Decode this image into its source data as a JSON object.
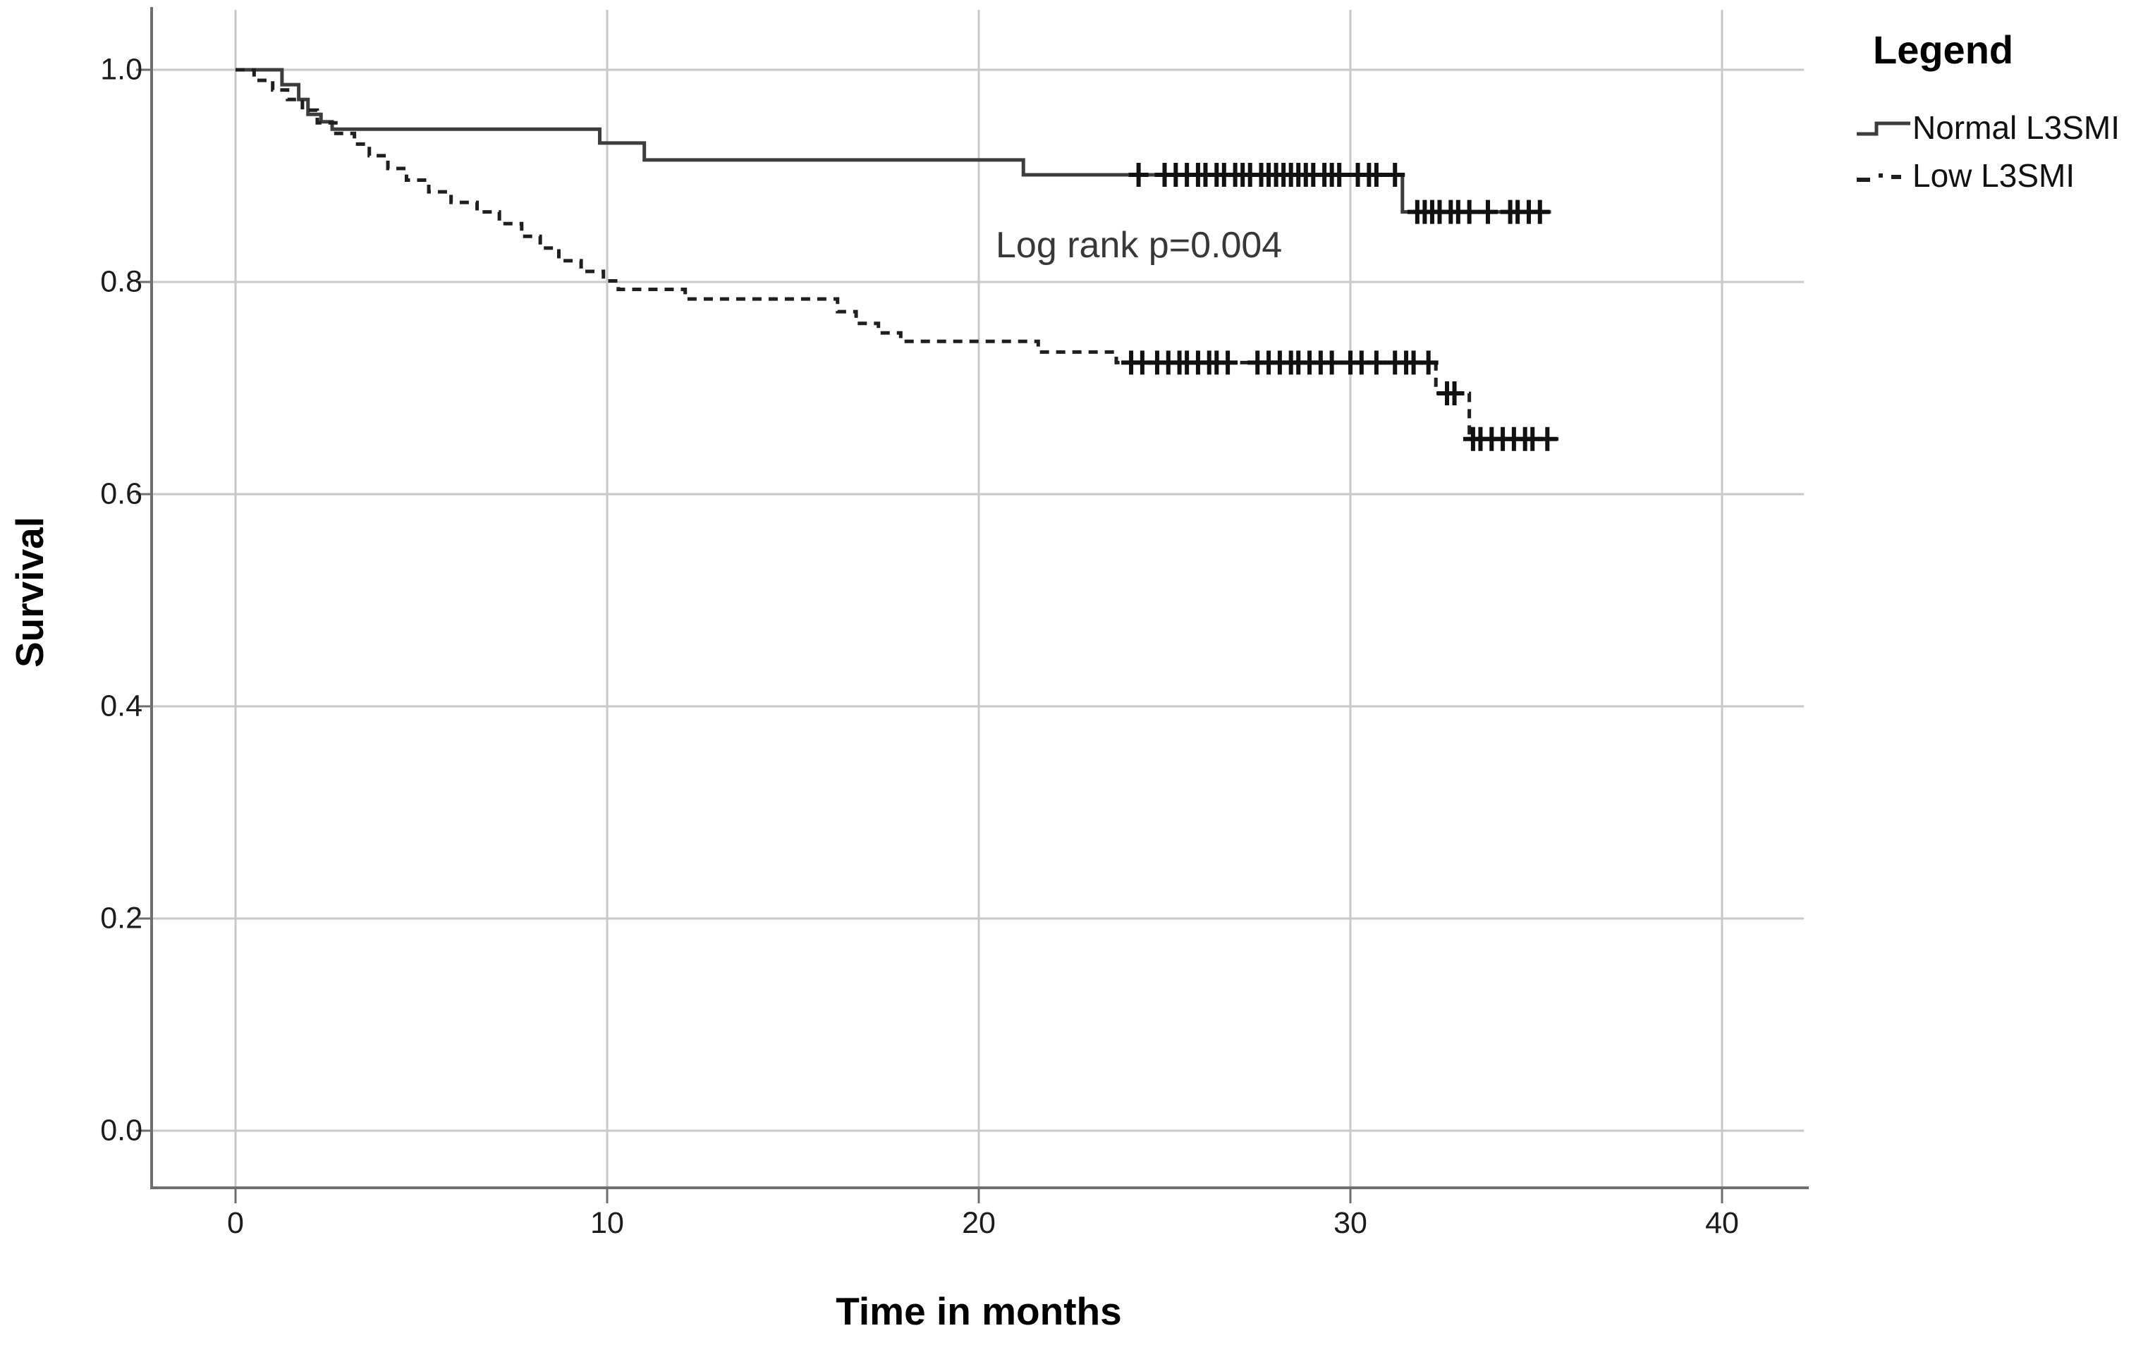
{
  "figure": {
    "background": "#ffffff"
  },
  "colors": {
    "grid": "#c9c9c9",
    "axis": "#6f6f6f",
    "solid_series": "#3d3d3d",
    "dashed_series": "#1f1f1f",
    "censor": "#111111",
    "tick_text": "#1c1c1c",
    "annotation_text": "#383838"
  },
  "x_axis": {
    "title": "Time in months",
    "tick_labels": [
      "0",
      "10",
      "20",
      "30",
      "40"
    ]
  },
  "y_axis": {
    "title": "Survival",
    "tick_labels": [
      "0.0",
      "0.2",
      "0.4",
      "0.6",
      "0.8",
      "1.0"
    ]
  },
  "legend": {
    "title": "Legend"
  },
  "annotation": {
    "text": "Log rank p=0.004"
  },
  "chart_data": {
    "type": "line",
    "subtype": "kaplan-meier-step",
    "title": "",
    "xlabel": "Time in months",
    "ylabel": "Survival",
    "xlim": [
      0,
      40
    ],
    "ylim": [
      0.0,
      1.0
    ],
    "grid": true,
    "legend_position": "top-right-outside",
    "x_tick_values": [
      0,
      10,
      20,
      30,
      40
    ],
    "y_tick_values": [
      0,
      0.2,
      0.4,
      0.6,
      0.8,
      1.0
    ],
    "annotation": {
      "text": "Log rank p=0.004",
      "x": 25.0,
      "y": 0.836
    },
    "series": [
      {
        "id": "normal-l3smi",
        "name": "Normal L3SMI",
        "style": "solid",
        "steps": [
          [
            0,
            1.0
          ],
          [
            1.25,
            0.986
          ],
          [
            1.7,
            0.972
          ],
          [
            1.95,
            0.958
          ],
          [
            2.3,
            0.951
          ],
          [
            2.6,
            0.944
          ],
          [
            9.8,
            0.931
          ],
          [
            11.0,
            0.915
          ],
          [
            21.2,
            0.901
          ],
          [
            31.4,
            0.866
          ]
        ],
        "end_time": 35.4,
        "censors": [
          [
            24.3,
            0.901
          ],
          [
            25.0,
            0.901
          ],
          [
            25.3,
            0.901
          ],
          [
            25.6,
            0.901
          ],
          [
            25.9,
            0.901
          ],
          [
            26.1,
            0.901
          ],
          [
            26.4,
            0.901
          ],
          [
            26.6,
            0.901
          ],
          [
            26.9,
            0.901
          ],
          [
            27.1,
            0.901
          ],
          [
            27.3,
            0.901
          ],
          [
            27.6,
            0.901
          ],
          [
            27.8,
            0.901
          ],
          [
            28.0,
            0.901
          ],
          [
            28.2,
            0.901
          ],
          [
            28.4,
            0.901
          ],
          [
            28.6,
            0.901
          ],
          [
            28.8,
            0.901
          ],
          [
            29.0,
            0.901
          ],
          [
            29.3,
            0.901
          ],
          [
            29.5,
            0.901
          ],
          [
            29.7,
            0.901
          ],
          [
            30.2,
            0.901
          ],
          [
            30.5,
            0.901
          ],
          [
            30.7,
            0.901
          ],
          [
            31.2,
            0.901
          ],
          [
            31.8,
            0.866
          ],
          [
            32.0,
            0.866
          ],
          [
            32.2,
            0.866
          ],
          [
            32.4,
            0.866
          ],
          [
            32.7,
            0.866
          ],
          [
            32.9,
            0.866
          ],
          [
            33.2,
            0.866
          ],
          [
            33.7,
            0.866
          ],
          [
            34.3,
            0.866
          ],
          [
            34.5,
            0.866
          ],
          [
            34.8,
            0.866
          ],
          [
            35.1,
            0.866
          ]
        ]
      },
      {
        "id": "low-l3smi",
        "name": "Low L3SMI",
        "style": "dashed",
        "steps": [
          [
            0,
            1.0
          ],
          [
            0.5,
            0.99
          ],
          [
            1.0,
            0.981
          ],
          [
            1.4,
            0.972
          ],
          [
            1.8,
            0.962
          ],
          [
            2.2,
            0.95
          ],
          [
            2.7,
            0.94
          ],
          [
            3.2,
            0.93
          ],
          [
            3.6,
            0.919
          ],
          [
            4.1,
            0.907
          ],
          [
            4.6,
            0.896
          ],
          [
            5.2,
            0.885
          ],
          [
            5.8,
            0.875
          ],
          [
            6.5,
            0.866
          ],
          [
            7.1,
            0.855
          ],
          [
            7.7,
            0.843
          ],
          [
            8.2,
            0.832
          ],
          [
            8.7,
            0.82
          ],
          [
            9.3,
            0.81
          ],
          [
            9.9,
            0.801
          ],
          [
            10.3,
            0.793
          ],
          [
            12.1,
            0.784
          ],
          [
            16.2,
            0.772
          ],
          [
            16.7,
            0.761
          ],
          [
            17.3,
            0.752
          ],
          [
            17.9,
            0.744
          ],
          [
            21.6,
            0.734
          ],
          [
            23.7,
            0.724
          ],
          [
            32.3,
            0.695
          ],
          [
            33.2,
            0.652
          ]
        ],
        "end_time": 35.6,
        "censors": [
          [
            24.1,
            0.724
          ],
          [
            24.4,
            0.724
          ],
          [
            24.8,
            0.724
          ],
          [
            25.1,
            0.724
          ],
          [
            25.4,
            0.724
          ],
          [
            25.6,
            0.724
          ],
          [
            25.9,
            0.724
          ],
          [
            26.2,
            0.724
          ],
          [
            26.4,
            0.724
          ],
          [
            26.7,
            0.724
          ],
          [
            27.5,
            0.724
          ],
          [
            27.8,
            0.724
          ],
          [
            28.1,
            0.724
          ],
          [
            28.4,
            0.724
          ],
          [
            28.6,
            0.724
          ],
          [
            28.9,
            0.724
          ],
          [
            29.2,
            0.724
          ],
          [
            29.5,
            0.724
          ],
          [
            30.0,
            0.724
          ],
          [
            30.3,
            0.724
          ],
          [
            30.7,
            0.724
          ],
          [
            31.2,
            0.724
          ],
          [
            31.5,
            0.724
          ],
          [
            31.7,
            0.724
          ],
          [
            32.1,
            0.724
          ],
          [
            32.6,
            0.695
          ],
          [
            32.8,
            0.695
          ],
          [
            33.3,
            0.652
          ],
          [
            33.5,
            0.652
          ],
          [
            33.8,
            0.652
          ],
          [
            34.1,
            0.652
          ],
          [
            34.4,
            0.652
          ],
          [
            34.7,
            0.652
          ],
          [
            34.9,
            0.652
          ],
          [
            35.3,
            0.652
          ]
        ]
      }
    ]
  }
}
